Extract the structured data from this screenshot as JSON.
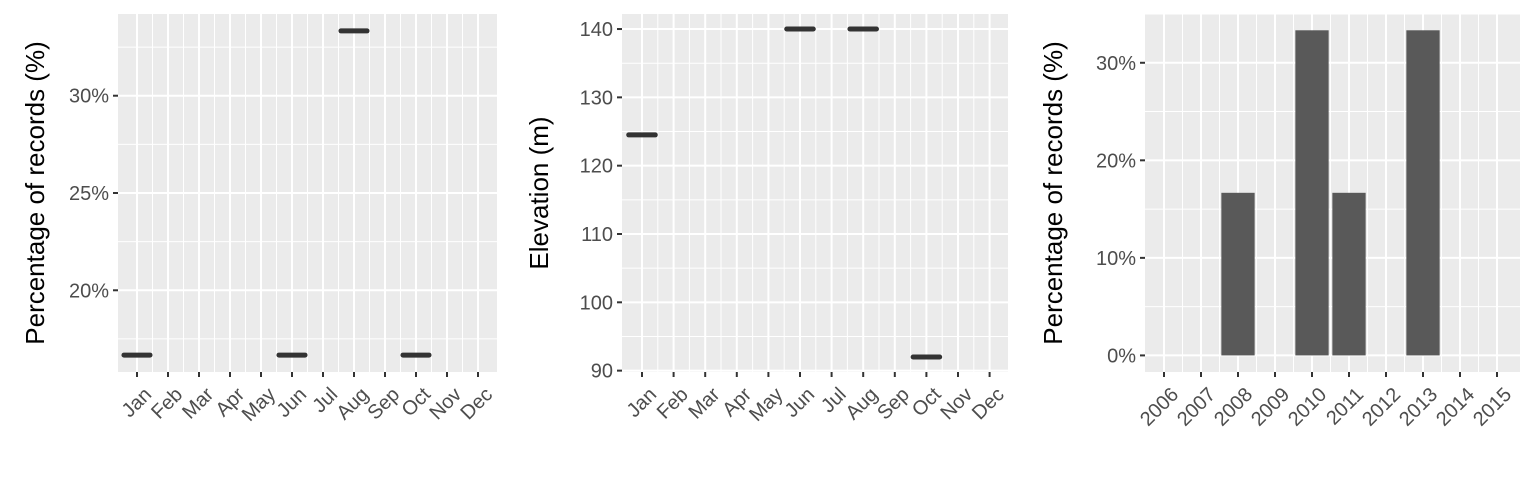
{
  "chart_data": [
    {
      "type": "scatter",
      "mark": "horizontal-segment",
      "ylabel": "Percentage of records (%)",
      "xlabel": "",
      "categories": [
        "Jan",
        "Feb",
        "Mar",
        "Apr",
        "May",
        "Jun",
        "Jul",
        "Aug",
        "Sep",
        "Oct",
        "Nov",
        "Dec"
      ],
      "values": [
        16.67,
        null,
        null,
        null,
        null,
        16.67,
        null,
        33.33,
        null,
        16.67,
        null,
        null
      ],
      "yticks": [
        20,
        25,
        30
      ],
      "ytick_labels": [
        "20%",
        "25%",
        "30%"
      ],
      "ylim": [
        15.8,
        34.2
      ],
      "grid": true
    },
    {
      "type": "scatter",
      "mark": "horizontal-segment",
      "ylabel": "Elevation (m)",
      "xlabel": "",
      "categories": [
        "Jan",
        "Feb",
        "Mar",
        "Apr",
        "May",
        "Jun",
        "Jul",
        "Aug",
        "Sep",
        "Oct",
        "Nov",
        "Dec"
      ],
      "values": [
        124.5,
        null,
        null,
        null,
        null,
        140,
        null,
        140,
        null,
        92,
        null,
        null
      ],
      "yticks": [
        90,
        100,
        110,
        120,
        130,
        140
      ],
      "ytick_labels": [
        "90",
        "100",
        "110",
        "120",
        "130",
        "140"
      ],
      "ylim": [
        89.8,
        142.2
      ],
      "grid": true
    },
    {
      "type": "bar",
      "ylabel": "Percentage of records (%)",
      "xlabel": "",
      "categories": [
        "2006",
        "2007",
        "2008",
        "2009",
        "2010",
        "2011",
        "2012",
        "2013",
        "2014",
        "2015"
      ],
      "values": [
        0,
        0,
        16.67,
        0,
        33.33,
        16.67,
        0,
        33.33,
        0,
        0
      ],
      "yticks": [
        0,
        10,
        20,
        30
      ],
      "ytick_labels": [
        "0%",
        "10%",
        "20%",
        "30%"
      ],
      "ylim": [
        -1.7,
        35
      ],
      "grid": true,
      "bar_color": "#595959"
    }
  ],
  "colors": {
    "panel_bg": "#ebebeb",
    "grid": "#ffffff",
    "mark": "#333333",
    "bar": "#595959",
    "tick": "#333333"
  }
}
